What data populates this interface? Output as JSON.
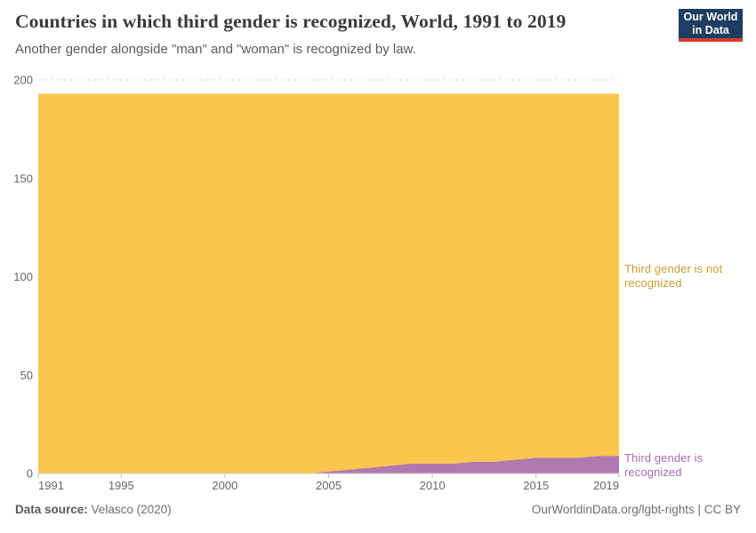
{
  "header": {
    "title": "Countries in which third gender is recognized, World, 1991 to 2019",
    "subtitle": "Another gender alongside \"man\" and \"woman\" is recognized by law.",
    "logo": {
      "line1": "Our World",
      "line2": "in Data",
      "bg_color": "#1d3d63",
      "accent_color": "#d93b30"
    }
  },
  "chart_data": {
    "type": "area",
    "stacked": true,
    "title": "Countries in which third gender is recognized, World, 1991 to 2019",
    "xlabel": "",
    "ylabel": "",
    "x": [
      1991,
      1992,
      1993,
      1994,
      1995,
      1996,
      1997,
      1998,
      1999,
      2000,
      2001,
      2002,
      2003,
      2004,
      2005,
      2006,
      2007,
      2008,
      2009,
      2010,
      2011,
      2012,
      2013,
      2014,
      2015,
      2016,
      2017,
      2018,
      2019
    ],
    "series": [
      {
        "name": "Third gender is recognized",
        "color": "#b179ae",
        "label_color": "#a86cac",
        "values": [
          0,
          0,
          0,
          0,
          0,
          0,
          0,
          0,
          0,
          0,
          0,
          0,
          0,
          0,
          1,
          2,
          3,
          4,
          5,
          5,
          5,
          6,
          6,
          7,
          8,
          8,
          8,
          9,
          9
        ]
      },
      {
        "name": "Third gender is not recognized",
        "color": "#fac64d",
        "label_color": "#cb9a2e",
        "values": [
          193,
          193,
          193,
          193,
          193,
          193,
          193,
          193,
          193,
          193,
          193,
          193,
          193,
          193,
          192,
          191,
          190,
          189,
          188,
          188,
          188,
          187,
          187,
          186,
          185,
          185,
          185,
          184,
          184
        ]
      }
    ],
    "ylim": [
      0,
      200
    ],
    "yticks": [
      0,
      50,
      100,
      150,
      200
    ],
    "xticks": [
      1991,
      1995,
      2000,
      2005,
      2010,
      2015,
      2019
    ],
    "grid": "horizontal-dashed",
    "legend_position": "right-end-labels"
  },
  "labels": {
    "not_recognized": "Third gender is not recognized",
    "recognized": "Third gender is recognized"
  },
  "footer": {
    "source_label": "Data source:",
    "source_value": "Velasco (2020)",
    "right_text": "OurWorldinData.org/lgbt-rights | CC BY"
  }
}
